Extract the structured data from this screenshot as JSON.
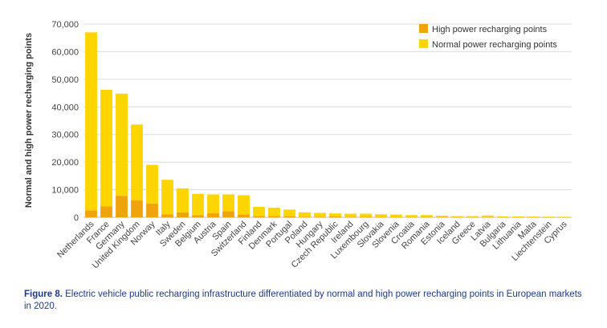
{
  "caption": {
    "label": "Figure 8.",
    "text": "Electric vehicle public recharging infrastructure differentiated by normal and high power recharging points in European markets in 2020."
  },
  "chart_data": {
    "type": "bar",
    "stacked": true,
    "ylabel": "Normal and high power recharging points",
    "ylim": [
      0,
      70000
    ],
    "yticks": [
      0,
      10000,
      20000,
      30000,
      40000,
      50000,
      60000,
      70000
    ],
    "ytick_labels": [
      "0",
      "10,000",
      "20,000",
      "30,000",
      "40,000",
      "50,000",
      "60,000",
      "70,000"
    ],
    "grid": true,
    "legend_position": "top-right",
    "categories": [
      "Netherlands",
      "France",
      "Germany",
      "United Kingdom",
      "Norway",
      "Italy",
      "Sweden",
      "Belgium",
      "Austria",
      "Spain",
      "Switzerland",
      "Finland",
      "Denmark",
      "Portugal",
      "Poland",
      "Hungary",
      "Czech Republic",
      "Ireland",
      "Luxembourg",
      "Slovakia",
      "Slovenia",
      "Croatia",
      "Romania",
      "Estonia",
      "Iceland",
      "Greece",
      "Latvia",
      "Bulgaria",
      "Lithuania",
      "Malta",
      "Liechtenstein",
      "Cyprus"
    ],
    "series": [
      {
        "name": "High power recharging points",
        "color": "#f0a30a",
        "values": [
          2500,
          4000,
          7800,
          6200,
          5000,
          1100,
          1800,
          800,
          1500,
          2200,
          1000,
          500,
          500,
          400,
          200,
          200,
          300,
          200,
          150,
          100,
          100,
          100,
          100,
          100,
          50,
          50,
          50,
          50,
          50,
          20,
          20,
          20
        ]
      },
      {
        "name": "Normal power recharging points",
        "color": "#ffd500",
        "values": [
          64500,
          42200,
          37000,
          27400,
          14000,
          12500,
          8700,
          7700,
          6800,
          6100,
          7000,
          3300,
          3000,
          2400,
          1600,
          1400,
          1100,
          1100,
          1150,
          1000,
          900,
          700,
          700,
          500,
          400,
          400,
          600,
          300,
          250,
          230,
          200,
          180
        ]
      }
    ]
  }
}
